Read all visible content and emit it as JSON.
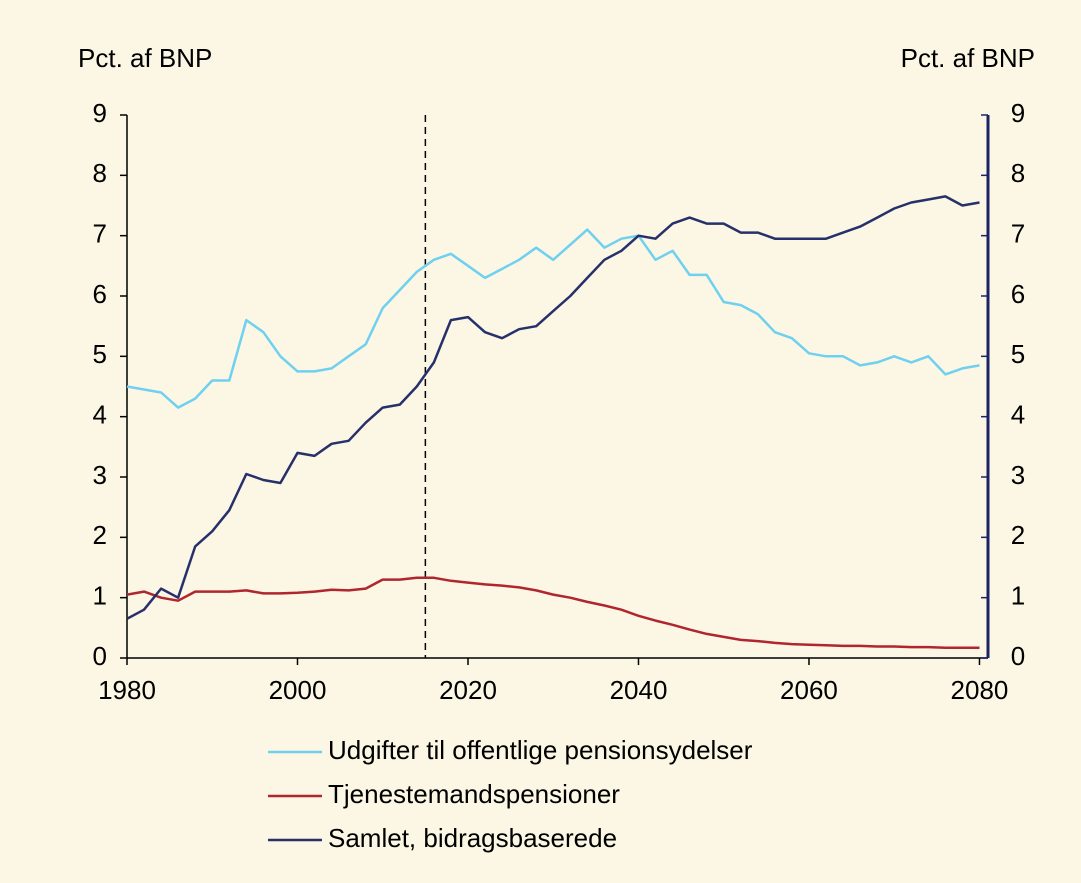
{
  "chart_data": {
    "type": "line",
    "y_label": "Pct. af BNP",
    "y2_label": "Pct. af BNP",
    "x": [
      1980,
      1982,
      1984,
      1986,
      1988,
      1990,
      1992,
      1994,
      1996,
      1998,
      2000,
      2002,
      2004,
      2006,
      2008,
      2010,
      2012,
      2014,
      2016,
      2018,
      2020,
      2022,
      2024,
      2026,
      2028,
      2030,
      2032,
      2034,
      2036,
      2038,
      2040,
      2042,
      2044,
      2046,
      2048,
      2050,
      2052,
      2054,
      2056,
      2058,
      2060,
      2062,
      2064,
      2066,
      2068,
      2070,
      2072,
      2074,
      2076,
      2078,
      2080
    ],
    "series": [
      {
        "name": "Udgifter til offentlige pensionsydelser",
        "color": "#6fd0f0",
        "values": [
          4.5,
          4.45,
          4.4,
          4.15,
          4.3,
          4.6,
          4.6,
          5.6,
          5.4,
          5.0,
          4.75,
          4.75,
          4.8,
          5.0,
          5.2,
          5.8,
          6.1,
          6.4,
          6.6,
          6.7,
          6.5,
          6.3,
          6.45,
          6.6,
          6.8,
          6.6,
          6.85,
          7.1,
          6.8,
          6.95,
          7.0,
          6.6,
          6.75,
          6.35,
          6.35,
          5.9,
          5.85,
          5.7,
          5.4,
          5.3,
          5.05,
          5.0,
          5.0,
          4.85,
          4.9,
          5.0,
          4.9,
          5.0,
          4.7,
          4.8,
          4.85
        ]
      },
      {
        "name": "Tjenestemandspensioner",
        "color": "#b0262e",
        "values": [
          1.05,
          1.1,
          1.0,
          0.95,
          1.1,
          1.1,
          1.1,
          1.12,
          1.07,
          1.07,
          1.08,
          1.1,
          1.13,
          1.12,
          1.15,
          1.3,
          1.3,
          1.33,
          1.33,
          1.28,
          1.25,
          1.22,
          1.2,
          1.17,
          1.12,
          1.05,
          1.0,
          0.93,
          0.87,
          0.8,
          0.7,
          0.62,
          0.55,
          0.47,
          0.4,
          0.35,
          0.3,
          0.28,
          0.25,
          0.23,
          0.22,
          0.21,
          0.2,
          0.2,
          0.19,
          0.19,
          0.18,
          0.18,
          0.17,
          0.17,
          0.17
        ]
      },
      {
        "name": "Samlet, bidragsbaserede",
        "color": "#27306a",
        "values": [
          0.65,
          0.8,
          1.15,
          1.0,
          1.85,
          2.1,
          2.45,
          3.05,
          2.95,
          2.9,
          3.4,
          3.35,
          3.55,
          3.6,
          3.9,
          4.15,
          4.2,
          4.5,
          4.9,
          5.6,
          5.65,
          5.4,
          5.3,
          5.45,
          5.5,
          5.75,
          6.0,
          6.3,
          6.6,
          6.75,
          7.0,
          6.95,
          7.2,
          7.3,
          7.2,
          7.2,
          7.05,
          7.05,
          6.95,
          6.95,
          6.95,
          6.95,
          7.05,
          7.15,
          7.3,
          7.45,
          7.55,
          7.6,
          7.65,
          7.5,
          7.55
        ]
      }
    ],
    "xlim": [
      1980,
      2081
    ],
    "xticks": [
      1980,
      2000,
      2020,
      2040,
      2060,
      2080
    ],
    "ylim": [
      0,
      9
    ],
    "yticks": [
      0,
      1,
      2,
      3,
      4,
      5,
      6,
      7,
      8,
      9
    ],
    "y2lim": [
      0,
      9
    ],
    "y2ticks": [
      0,
      1,
      2,
      3,
      4,
      5,
      6,
      7,
      8,
      9
    ],
    "vline": 2015,
    "grid": false,
    "legend": "bottom"
  }
}
